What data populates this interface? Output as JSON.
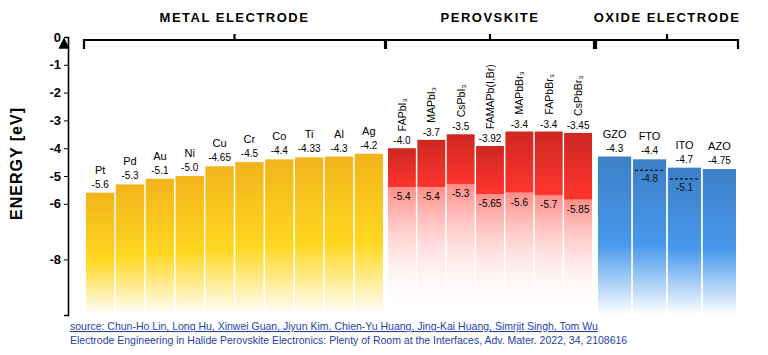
{
  "chart_data": {
    "type": "bar",
    "y_label": "ENERGY [eV]",
    "ylim": [
      -10,
      0
    ],
    "yticks": [
      0,
      -1,
      -2,
      -3,
      -4,
      -5,
      -6,
      -8
    ],
    "data_labels": true,
    "groups": [
      {
        "title": "METAL ELECTRODE",
        "type": "bar",
        "color": "#f2b41b",
        "categories": [
          "Pt",
          "Pd",
          "Au",
          "Ni",
          "Cu",
          "Cr",
          "Co",
          "Ti",
          "Al",
          "Ag"
        ],
        "values": [
          -5.6,
          -5.3,
          -5.1,
          -5.0,
          -4.65,
          -4.5,
          -4.4,
          -4.33,
          -4.3,
          -4.2
        ],
        "value_labels": [
          "-5.6",
          "-5.3",
          "-5.1",
          "-5.0",
          "-4.65",
          "-4.5",
          "-4.4",
          "-4.33",
          "-4.3",
          "-4.2"
        ]
      },
      {
        "title": "PEROVSKITE",
        "type": "floating",
        "color": "#e52b25",
        "categories": [
          "FAPbI₃",
          "MAPbI₃",
          "CsPbI₃",
          "FAMAPb(I,Br)",
          "MAPbBr₃",
          "FAPbBr₃",
          "CsPbBr₃"
        ],
        "values": [
          -4.0,
          -3.7,
          -3.5,
          -3.92,
          -3.4,
          -3.4,
          -3.45
        ],
        "value_labels": [
          "-4.0",
          "-3.7",
          "-3.5",
          "-3.92",
          "-3.4",
          "-3.4",
          "-3.45"
        ],
        "low_values": [
          -5.4,
          -5.4,
          -5.3,
          -5.65,
          -5.6,
          -5.7,
          -5.85
        ],
        "low_value_labels": [
          "-5.4",
          "-5.4",
          "-5.3",
          "-5.65",
          "-5.6",
          "-5.7",
          "-5.85"
        ]
      },
      {
        "title": "OXIDE ELECTRODE",
        "type": "bar",
        "color": "#3c7fc6",
        "categories": [
          "GZO",
          "FTO",
          "ITO",
          "AZO"
        ],
        "values": [
          -4.3,
          -4.4,
          -4.7,
          -4.75
        ],
        "value_labels": [
          "-4.3",
          "-4.4",
          "-4.7",
          "-4.75"
        ],
        "low_values": [
          null,
          -4.8,
          -5.1,
          null
        ],
        "low_value_labels": [
          null,
          "-4.8",
          "-5.1",
          null
        ]
      }
    ],
    "annotations": [
      "source: Chun-Ho Lin, Long Hu, Xinwei Guan, Jiyun Kim, Chien-Yu Huang, Jing-Kai Huang, Simrjit Singh, Tom Wu",
      "Electrode Engineering in Halide Perovskite Electronics: Plenty of Room at the Interfaces, Adv. Mater. 2022, 34, 2108616"
    ]
  }
}
